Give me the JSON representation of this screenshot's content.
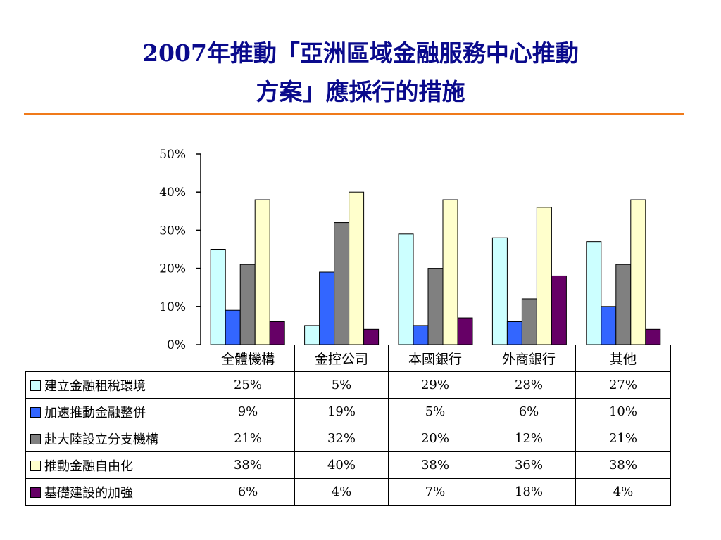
{
  "title": {
    "line1": "2007年推動「亞洲區域金融服務中心推動",
    "line2": "方案」應採行的措施"
  },
  "colors": {
    "title": "#0a0a8c",
    "rule": "#f07a1a"
  },
  "chart_data": {
    "type": "bar",
    "categories": [
      "全體機構",
      "金控公司",
      "本國銀行",
      "外商銀行",
      "其他"
    ],
    "series": [
      {
        "name": "建立金融租稅環境",
        "color": "#ccffff",
        "values": [
          25,
          5,
          29,
          28,
          27
        ],
        "labels": [
          "25%",
          "5%",
          "29%",
          "28%",
          "27%"
        ]
      },
      {
        "name": "加速推動金融整併",
        "color": "#3366ff",
        "values": [
          9,
          19,
          5,
          6,
          10
        ],
        "labels": [
          "9%",
          "19%",
          "5%",
          "6%",
          "10%"
        ]
      },
      {
        "name": "赴大陸設立分支機構",
        "color": "#808080",
        "values": [
          21,
          32,
          20,
          12,
          21
        ],
        "labels": [
          "21%",
          "32%",
          "20%",
          "12%",
          "21%"
        ]
      },
      {
        "name": "推動金融自由化",
        "color": "#ffffcc",
        "values": [
          38,
          40,
          38,
          36,
          38
        ],
        "labels": [
          "38%",
          "40%",
          "38%",
          "36%",
          "38%"
        ]
      },
      {
        "name": "基礎建設的加強",
        "color": "#660066",
        "values": [
          6,
          4,
          7,
          18,
          4
        ],
        "labels": [
          "6%",
          "4%",
          "7%",
          "18%",
          "4%"
        ]
      }
    ],
    "ylim": [
      0,
      50
    ],
    "yticks": [
      "0%",
      "10%",
      "20%",
      "30%",
      "40%",
      "50%"
    ],
    "grid": false,
    "legend": "data table below chart"
  }
}
